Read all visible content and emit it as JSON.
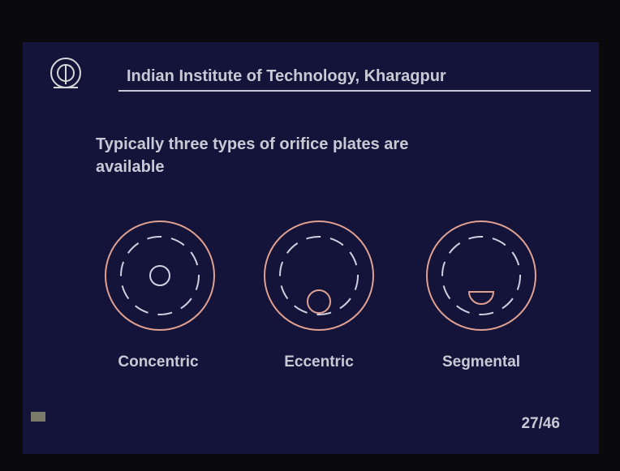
{
  "header": {
    "title": "Indian Institute of Technology, Kharagpur"
  },
  "body": {
    "text_line1": "Typically three types of orifice plates are",
    "text_line2": "available"
  },
  "figures": [
    {
      "label": "Concentric"
    },
    {
      "label": "Eccentric"
    },
    {
      "label": "Segmental"
    }
  ],
  "footer": {
    "page": "27/46"
  }
}
